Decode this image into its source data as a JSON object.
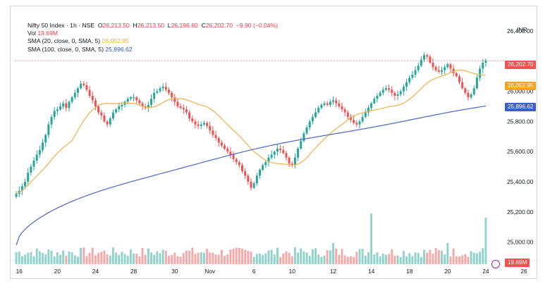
{
  "legend": {
    "symbol": "Nifty 50 Index · 1h · NSE",
    "o_label": "O",
    "o": "26,213.50",
    "h_label": "H",
    "h": "26,213.50",
    "l_label": "L",
    "l": "26,196.60",
    "c_label": "C",
    "c": "26,202.70",
    "change": "−9.90 (−0.04%)",
    "vol_label": "Vol",
    "vol": "19.69M",
    "sma20_label": "SMA (20, close, 0, SMA, 5)",
    "sma20": "26,052.95",
    "sma100_label": "SMA (100, close, 0, SMA, 5)",
    "sma100": "25,896.62"
  },
  "currency": "INR",
  "tags": {
    "price": "26,202.70",
    "sma20": "26,052.95",
    "sma100": "25,896.62",
    "volume": "19.69M"
  },
  "colors": {
    "up": "#26a69a",
    "down": "#ef5350",
    "sma20": "#f2b04a",
    "sma100": "#4a67c4",
    "vol_up": "#8fd3cb",
    "vol_down": "#f7a9a8"
  },
  "chart_data": {
    "type": "candlestick",
    "y_ticks": [
      {
        "label": "26,400.00",
        "value": 26400
      },
      {
        "label": "26,000.00",
        "value": 26000
      },
      {
        "label": "25,800.00",
        "value": 25800
      },
      {
        "label": "25,600.00",
        "value": 25600
      },
      {
        "label": "25,400.00",
        "value": 25400
      },
      {
        "label": "25,200.00",
        "value": 25200
      },
      {
        "label": "25,000.00",
        "value": 25000
      }
    ],
    "ylim": [
      24900,
      26470
    ],
    "x_ticks": [
      {
        "label": "16",
        "i": 1
      },
      {
        "label": "20",
        "i": 14
      },
      {
        "label": "24",
        "i": 27
      },
      {
        "label": "28",
        "i": 40
      },
      {
        "label": "30",
        "i": 54
      },
      {
        "label": "Nov",
        "i": 66
      },
      {
        "label": "6",
        "i": 81
      },
      {
        "label": "10",
        "i": 94
      },
      {
        "label": "12",
        "i": 108
      },
      {
        "label": "14",
        "i": 121
      },
      {
        "label": "18",
        "i": 134
      },
      {
        "label": "20",
        "i": 147
      },
      {
        "label": "24",
        "i": 160
      },
      {
        "label": "26",
        "i": 173
      }
    ],
    "closes": [
      25320,
      25340,
      25370,
      25400,
      25460,
      25500,
      25540,
      25580,
      25610,
      25660,
      25710,
      25780,
      25830,
      25870,
      25880,
      25900,
      25920,
      25890,
      25930,
      25960,
      25990,
      26020,
      26050,
      26040,
      26010,
      25970,
      25940,
      25900,
      25860,
      25840,
      25800,
      25780,
      25820,
      25860,
      25880,
      25900,
      25910,
      25930,
      25950,
      25960,
      25960,
      25940,
      25920,
      25900,
      25890,
      25910,
      25950,
      25990,
      26000,
      26020,
      26030,
      26010,
      25990,
      25960,
      25930,
      25900,
      25890,
      25880,
      25860,
      25820,
      25800,
      25780,
      25770,
      25780,
      25790,
      25770,
      25740,
      25710,
      25690,
      25660,
      25640,
      25620,
      25600,
      25580,
      25550,
      25530,
      25510,
      25470,
      25440,
      25400,
      25360,
      25390,
      25440,
      25480,
      25510,
      25530,
      25560,
      25580,
      25600,
      25620,
      25610,
      25590,
      25560,
      25520,
      25510,
      25560,
      25620,
      25670,
      25720,
      25760,
      25800,
      25830,
      25860,
      25890,
      25910,
      25920,
      25910,
      25930,
      25940,
      25920,
      25900,
      25880,
      25860,
      25830,
      25810,
      25790,
      25780,
      25800,
      25830,
      25860,
      25890,
      25920,
      25950,
      25970,
      25990,
      26010,
      26020,
      26010,
      25990,
      25970,
      25980,
      26000,
      26030,
      26060,
      26090,
      26110,
      26140,
      26170,
      26210,
      26240,
      26230,
      26190,
      26160,
      26140,
      26130,
      26140,
      26160,
      26180,
      26150,
      26120,
      26100,
      26060,
      26020,
      25990,
      25960,
      25980,
      26020,
      26090,
      26150,
      26190,
      26202.7
    ]
  }
}
